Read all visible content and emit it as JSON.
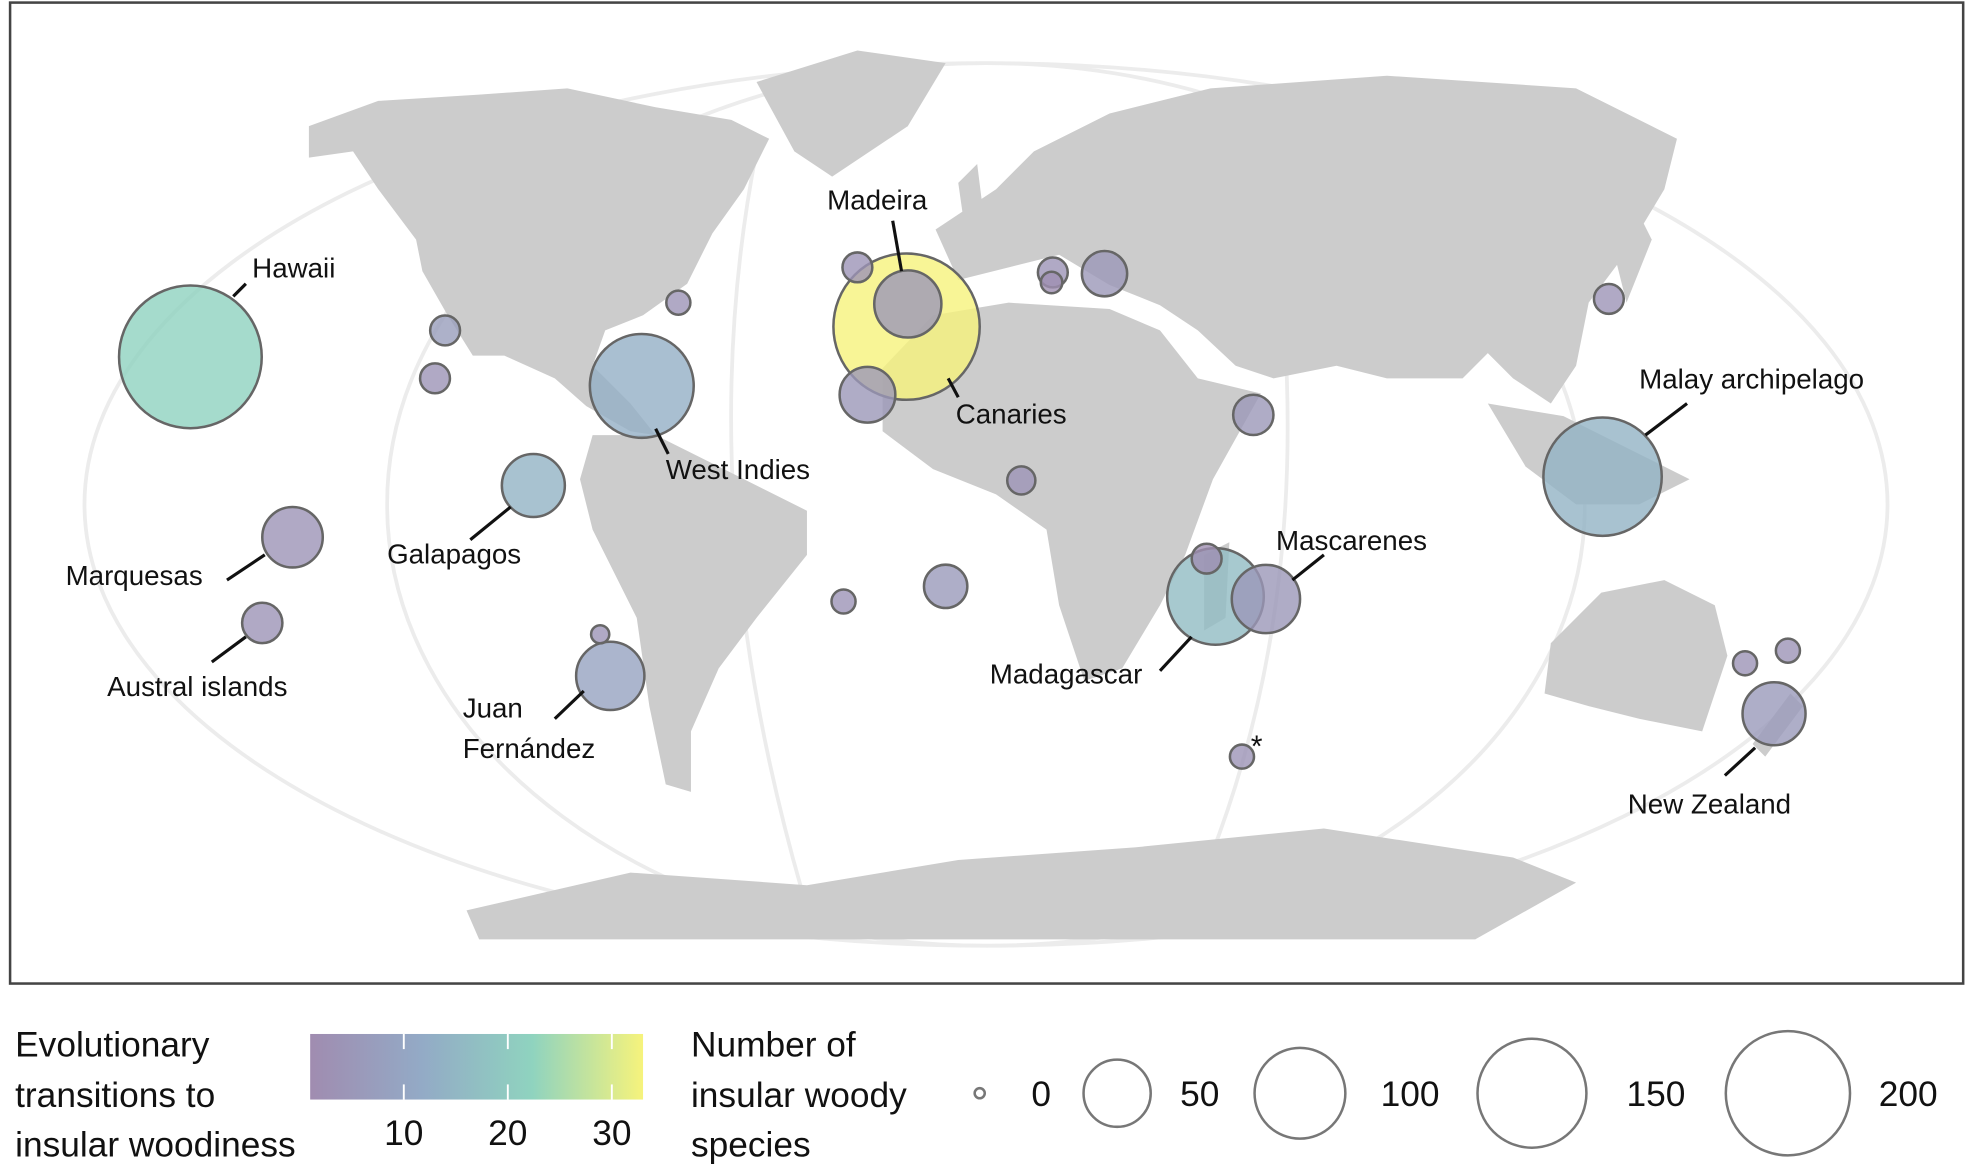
{
  "chart_data": {
    "type": "bubble-map",
    "islands": [
      {
        "label": "Hawaii",
        "species": 270,
        "transitions": 22
      },
      {
        "label": "Canaries",
        "species": 285,
        "transitions": 33
      },
      {
        "label": "Madeira",
        "species": 50,
        "transitions": 5
      },
      {
        "label": "West Indies",
        "species": 135,
        "transitions": 13
      },
      {
        "label": "Malay archipelago",
        "species": 180,
        "transitions": 14
      },
      {
        "label": "Madagascar",
        "species": 115,
        "transitions": 16
      },
      {
        "label": "Mascarenes",
        "species": 52,
        "transitions": 5
      },
      {
        "label": "Galapagos",
        "species": 43,
        "transitions": 14
      },
      {
        "label": "Marquesas",
        "species": 39,
        "transitions": 4
      },
      {
        "label": "Austral islands",
        "species": 14,
        "transitions": 4
      },
      {
        "label": "Juan Fernández",
        "species": 52,
        "transitions": 9
      },
      {
        "label": "New Zealand",
        "species": 43,
        "transitions": 6
      },
      {
        "label": "",
        "species": 6,
        "transitions": 4
      },
      {
        "label": "",
        "species": 6,
        "transitions": 4
      },
      {
        "label": "",
        "species": 2,
        "transitions": 2
      },
      {
        "label": "",
        "species": 19,
        "transitions": 5
      },
      {
        "label": "",
        "species": 3,
        "transitions": 4
      },
      {
        "label": "",
        "species": 6,
        "transitions": 7
      },
      {
        "label": "",
        "species": 6,
        "transitions": 4
      },
      {
        "label": "",
        "species": 32,
        "transitions": 5
      },
      {
        "label": "",
        "species": 14,
        "transitions": 5
      },
      {
        "label": "",
        "species": 5,
        "transitions": 4
      },
      {
        "label": "",
        "species": 17,
        "transitions": 6
      },
      {
        "label": "",
        "species": 3,
        "transitions": 4
      },
      {
        "label": "",
        "species": 1,
        "transitions": 4
      },
      {
        "label": "",
        "species": 6,
        "transitions": 2
      },
      {
        "label": "",
        "species": 6,
        "transitions": 4
      },
      {
        "label": "",
        "species": 3,
        "transitions": 4
      },
      {
        "label": "",
        "species": 3,
        "transitions": 4
      },
      {
        "label": "",
        "species": 3,
        "transitions": 4
      }
    ],
    "asterisk": "*",
    "color_legend": {
      "title_lines": [
        "Evolutionary",
        "transitions to",
        "insular woodiness"
      ],
      "range": [
        1,
        33
      ],
      "ticks": [
        "10",
        "20",
        "30"
      ],
      "colors": [
        "#a08cb0",
        "#93aac6",
        "#8fd3bf",
        "#f6f37c"
      ]
    },
    "size_legend": {
      "title_lines": [
        "Number of",
        "insular woody",
        "species"
      ],
      "values": [
        "0",
        "50",
        "100",
        "150",
        "200"
      ]
    }
  }
}
